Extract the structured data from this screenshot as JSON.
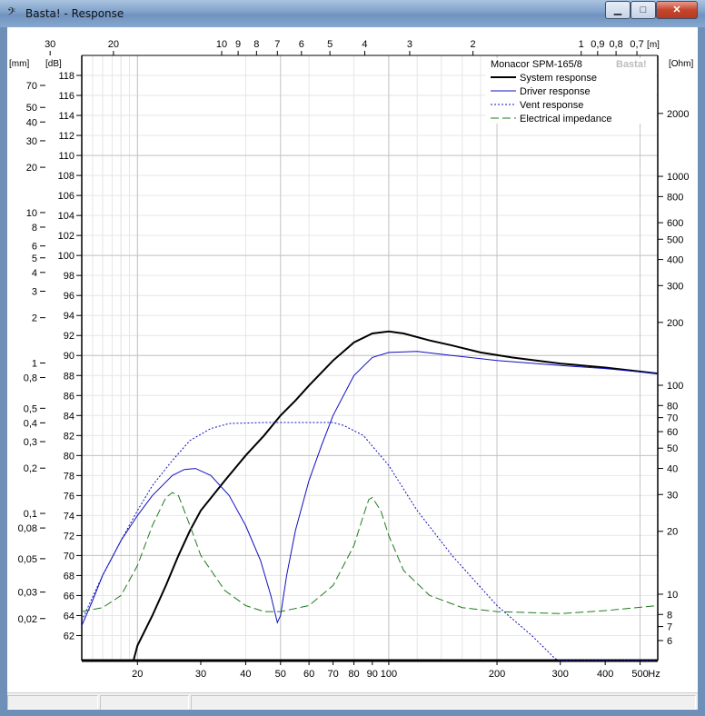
{
  "window": {
    "title": "Basta! - Response",
    "icon": "bass-clef-icon",
    "buttons": [
      "minimize",
      "maximize",
      "close"
    ]
  },
  "statusbar": {
    "panes": [
      "",
      "",
      ""
    ]
  },
  "chart_data": {
    "type": "line",
    "x_scale": "log",
    "xlim": [
      14,
      560
    ],
    "x_ticks": [
      20,
      30,
      40,
      50,
      60,
      70,
      80,
      90,
      100,
      200,
      300,
      400,
      500
    ],
    "x_unit": "Hz",
    "wavelength_ticks": [
      "30",
      "20",
      "10",
      "9",
      "8",
      "7",
      "6",
      "5",
      "4",
      "3",
      "2",
      "1",
      "0,9",
      "0,8",
      "0,7"
    ],
    "wavelength_unit": "[m]",
    "ylim_db": [
      59.5,
      120
    ],
    "y_db_ticks": [
      62,
      64,
      66,
      68,
      70,
      72,
      74,
      76,
      78,
      80,
      82,
      84,
      86,
      88,
      90,
      92,
      94,
      96,
      98,
      100,
      102,
      104,
      106,
      108,
      110,
      112,
      114,
      116,
      118
    ],
    "y_db_unit": "[dB]",
    "y_mm_ticks": [
      "70",
      "50",
      "40",
      "30",
      "20",
      "10",
      "8",
      "6",
      "5",
      "4",
      "3",
      "2",
      "1",
      "0,8",
      "0,5",
      "0,4",
      "0,3",
      "0,2",
      "0,1",
      "0,08",
      "0,05",
      "0,03",
      "0,02"
    ],
    "y_mm_unit": "[mm]",
    "y_ohm_ticks": [
      "2000",
      "1000",
      "800",
      "600",
      "500",
      "400",
      "300",
      "200",
      "100",
      "80",
      "70",
      "60",
      "50",
      "40",
      "30",
      "20",
      "10",
      "8",
      "7",
      "6"
    ],
    "y_ohm_unit": "[Ohm]",
    "legend_title": "Monacor SPM-165/8",
    "watermark": "Basta!",
    "legend_position": "top-right",
    "series": [
      {
        "name": "System response",
        "color": "#000000",
        "style": "solid",
        "points": [
          [
            19.5,
            59.5
          ],
          [
            20,
            61
          ],
          [
            22,
            64
          ],
          [
            24,
            67
          ],
          [
            26,
            70
          ],
          [
            28,
            72.5
          ],
          [
            30,
            74.5
          ],
          [
            35,
            77.5
          ],
          [
            40,
            80
          ],
          [
            45,
            82
          ],
          [
            50,
            84
          ],
          [
            55,
            85.5
          ],
          [
            60,
            87
          ],
          [
            70,
            89.5
          ],
          [
            80,
            91.3
          ],
          [
            90,
            92.2
          ],
          [
            100,
            92.4
          ],
          [
            110,
            92.2
          ],
          [
            130,
            91.5
          ],
          [
            150,
            91
          ],
          [
            180,
            90.3
          ],
          [
            220,
            89.8
          ],
          [
            300,
            89.2
          ],
          [
            400,
            88.8
          ],
          [
            560,
            88.2
          ]
        ]
      },
      {
        "name": "Driver response",
        "color": "#1010c0",
        "style": "solid",
        "points": [
          [
            14,
            63
          ],
          [
            15,
            65.5
          ],
          [
            16,
            68
          ],
          [
            18,
            71.5
          ],
          [
            20,
            74
          ],
          [
            22,
            76
          ],
          [
            25,
            78
          ],
          [
            27,
            78.6
          ],
          [
            29,
            78.7
          ],
          [
            32,
            78
          ],
          [
            36,
            76
          ],
          [
            40,
            73
          ],
          [
            44,
            69.5
          ],
          [
            47,
            66
          ],
          [
            49,
            63.3
          ],
          [
            50,
            64
          ],
          [
            52,
            68
          ],
          [
            55,
            72.5
          ],
          [
            60,
            77.5
          ],
          [
            65,
            81
          ],
          [
            70,
            84
          ],
          [
            80,
            88
          ],
          [
            90,
            89.8
          ],
          [
            100,
            90.3
          ],
          [
            120,
            90.4
          ],
          [
            150,
            90
          ],
          [
            200,
            89.5
          ],
          [
            300,
            89
          ],
          [
            400,
            88.7
          ],
          [
            560,
            88.2
          ]
        ]
      },
      {
        "name": "Vent response",
        "color": "#1010c0",
        "style": "dotted",
        "points": [
          [
            14,
            63.5
          ],
          [
            16,
            68
          ],
          [
            18,
            71.5
          ],
          [
            20,
            74.5
          ],
          [
            22,
            77
          ],
          [
            25,
            79.5
          ],
          [
            28,
            81.5
          ],
          [
            32,
            82.7
          ],
          [
            36,
            83.2
          ],
          [
            45,
            83.3
          ],
          [
            70,
            83.3
          ],
          [
            75,
            83
          ],
          [
            85,
            82
          ],
          [
            100,
            79
          ],
          [
            120,
            74.5
          ],
          [
            150,
            70
          ],
          [
            200,
            65
          ],
          [
            250,
            62
          ],
          [
            290,
            59.7
          ],
          [
            300,
            59.5
          ],
          [
            560,
            59.5
          ]
        ]
      },
      {
        "name": "Electrical impedance",
        "color": "#1e7a1e",
        "style": "dashed",
        "points": [
          [
            14,
            64.4
          ],
          [
            16,
            64.8
          ],
          [
            18,
            66
          ],
          [
            20,
            69
          ],
          [
            22,
            73
          ],
          [
            24,
            75.8
          ],
          [
            25,
            76.3
          ],
          [
            26,
            76
          ],
          [
            28,
            73
          ],
          [
            30,
            70
          ],
          [
            35,
            66.5
          ],
          [
            40,
            65
          ],
          [
            45,
            64.4
          ],
          [
            50,
            64.4
          ],
          [
            60,
            65
          ],
          [
            70,
            67
          ],
          [
            80,
            71
          ],
          [
            85,
            74
          ],
          [
            88,
            75.6
          ],
          [
            90,
            75.8
          ],
          [
            95,
            74.5
          ],
          [
            100,
            72
          ],
          [
            110,
            68.5
          ],
          [
            130,
            66
          ],
          [
            160,
            64.8
          ],
          [
            200,
            64.4
          ],
          [
            300,
            64.2
          ],
          [
            400,
            64.5
          ],
          [
            560,
            65
          ]
        ]
      }
    ]
  }
}
